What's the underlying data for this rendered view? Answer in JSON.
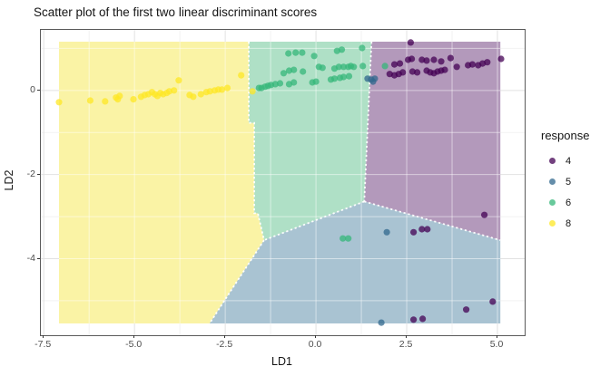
{
  "chart_data": {
    "type": "scatter",
    "title": "Scatter plot of the first two linear discriminant scores",
    "xlabel": "LD1",
    "ylabel": "LD2",
    "legend_title": "response",
    "legend_position": "right",
    "grid": true,
    "xlim": [
      -7.58,
      5.75
    ],
    "ylim": [
      -5.82,
      1.44
    ],
    "x_ticks": {
      "values": [
        -7.5,
        -5.0,
        -2.5,
        0.0,
        2.5,
        5.0
      ],
      "labels": [
        "-7.5",
        "-5.0",
        "-2.5",
        "0.0",
        "2.5",
        "5.0"
      ]
    },
    "y_ticks": {
      "values": [
        0,
        -2,
        -4
      ],
      "labels": [
        "0",
        "-2",
        "-4"
      ]
    },
    "x_minor": [
      -6.25,
      -3.75,
      -1.25,
      1.25,
      3.75
    ],
    "y_minor": [
      1,
      -1,
      -3,
      -5
    ],
    "point_opacity": 0.75,
    "region_extent": {
      "x": [
        -7.08,
        5.08
      ],
      "y": [
        -5.54,
        1.16
      ]
    },
    "regions": [
      {
        "class": "8",
        "fill": "#FAF3A5",
        "polygon": [
          [
            -7.08,
            1.16
          ],
          [
            -1.85,
            1.16
          ],
          [
            -1.85,
            -0.77
          ],
          [
            -1.7,
            -0.77
          ],
          [
            -1.7,
            -2.92
          ],
          [
            -1.6,
            -2.92
          ],
          [
            -1.43,
            -3.56
          ],
          [
            -2.38,
            -4.81
          ],
          [
            -2.93,
            -5.54
          ],
          [
            -7.08,
            -5.54
          ]
        ]
      },
      {
        "class": "6",
        "fill": "#AFE0C6",
        "polygon": [
          [
            -1.85,
            1.16
          ],
          [
            1.53,
            1.16
          ],
          [
            1.33,
            -2.64
          ],
          [
            -1.43,
            -3.56
          ],
          [
            -1.6,
            -2.92
          ],
          [
            -1.7,
            -2.92
          ],
          [
            -1.7,
            -0.77
          ],
          [
            -1.85,
            -0.77
          ]
        ]
      },
      {
        "class": "4",
        "fill": "#B399BB",
        "polygon": [
          [
            1.53,
            1.16
          ],
          [
            5.08,
            1.16
          ],
          [
            5.08,
            -3.56
          ],
          [
            1.33,
            -2.64
          ]
        ]
      },
      {
        "class": "5",
        "fill": "#A9C3D2",
        "polygon": [
          [
            1.33,
            -2.64
          ],
          [
            5.08,
            -3.56
          ],
          [
            5.08,
            -5.54
          ],
          [
            -2.93,
            -5.54
          ],
          [
            -2.38,
            -4.81
          ],
          [
            -1.43,
            -3.56
          ]
        ]
      }
    ],
    "boundaries": [
      [
        [
          -1.85,
          1.16
        ],
        [
          -1.85,
          -0.77
        ],
        [
          -1.7,
          -0.77
        ],
        [
          -1.7,
          -2.92
        ],
        [
          -1.6,
          -2.92
        ],
        [
          -1.43,
          -3.56
        ]
      ],
      [
        [
          1.53,
          1.16
        ],
        [
          1.33,
          -2.64
        ]
      ],
      [
        [
          1.33,
          -2.64
        ],
        [
          -1.43,
          -3.56
        ]
      ],
      [
        [
          -1.43,
          -3.56
        ],
        [
          -2.38,
          -4.81
        ],
        [
          -2.93,
          -5.54
        ]
      ],
      [
        [
          1.33,
          -2.64
        ],
        [
          5.08,
          -3.56
        ]
      ]
    ],
    "series": [
      {
        "name": "4",
        "color": "#440154",
        "points": [
          [
            2.61,
            1.14
          ],
          [
            2.16,
            0.62
          ],
          [
            2.31,
            0.64
          ],
          [
            2.54,
            0.73
          ],
          [
            2.64,
            0.75
          ],
          [
            2.92,
            0.73
          ],
          [
            3.05,
            0.71
          ],
          [
            3.25,
            0.73
          ],
          [
            3.45,
            0.69
          ],
          [
            3.71,
            0.77
          ],
          [
            3.88,
            0.56
          ],
          [
            4.19,
            0.6
          ],
          [
            4.31,
            0.62
          ],
          [
            4.47,
            0.6
          ],
          [
            4.59,
            0.64
          ],
          [
            4.72,
            0.67
          ],
          [
            5.1,
            0.75
          ],
          [
            2.03,
            0.39
          ],
          [
            2.16,
            0.36
          ],
          [
            2.28,
            0.39
          ],
          [
            2.39,
            0.43
          ],
          [
            2.66,
            0.45
          ],
          [
            2.79,
            0.43
          ],
          [
            3.05,
            0.47
          ],
          [
            3.15,
            0.43
          ],
          [
            3.25,
            0.41
          ],
          [
            3.35,
            0.45
          ],
          [
            3.45,
            0.47
          ],
          [
            3.55,
            0.49
          ],
          [
            4.64,
            -2.96
          ],
          [
            2.69,
            -3.37
          ],
          [
            2.92,
            -3.3
          ],
          [
            3.07,
            -3.3
          ],
          [
            4.87,
            -5.02
          ],
          [
            4.14,
            -5.21
          ],
          [
            2.69,
            -5.45
          ],
          [
            2.94,
            -5.43
          ]
        ]
      },
      {
        "name": "5",
        "color": "#31688E",
        "points": [
          [
            1.42,
            0.28
          ],
          [
            1.52,
            0.26
          ],
          [
            1.62,
            0.28
          ],
          [
            1.57,
            0.21
          ],
          [
            1.95,
            -3.37
          ],
          [
            1.8,
            -5.52
          ]
        ]
      },
      {
        "name": "6",
        "color": "#35B779",
        "points": [
          [
            -0.76,
            0.88
          ],
          [
            -0.56,
            0.9
          ],
          [
            -0.38,
            0.9
          ],
          [
            -0.05,
            0.82
          ],
          [
            0.58,
            0.94
          ],
          [
            0.71,
            0.97
          ],
          [
            1.27,
            1.01
          ],
          [
            -0.89,
            0.41
          ],
          [
            -0.74,
            0.47
          ],
          [
            -0.61,
            0.49
          ],
          [
            -0.36,
            0.45
          ],
          [
            0.08,
            0.56
          ],
          [
            0.18,
            0.54
          ],
          [
            0.51,
            0.52
          ],
          [
            0.63,
            0.56
          ],
          [
            0.76,
            0.56
          ],
          [
            0.89,
            0.56
          ],
          [
            0.96,
            0.58
          ],
          [
            1.04,
            0.56
          ],
          [
            1.29,
            0.58
          ],
          [
            -1.57,
            0.06
          ],
          [
            -1.5,
            0.06
          ],
          [
            -1.4,
            0.09
          ],
          [
            -1.32,
            0.11
          ],
          [
            -1.24,
            0.13
          ],
          [
            -1.12,
            0.15
          ],
          [
            -0.99,
            0.17
          ],
          [
            -0.74,
            0.15
          ],
          [
            -0.61,
            0.19
          ],
          [
            -0.1,
            0.19
          ],
          [
            0.0,
            0.21
          ],
          [
            0.41,
            0.26
          ],
          [
            0.51,
            0.28
          ],
          [
            0.66,
            0.3
          ],
          [
            0.76,
            0.32
          ],
          [
            0.91,
            0.34
          ],
          [
            1.9,
            0.58
          ],
          [
            0.74,
            -3.52
          ],
          [
            0.89,
            -3.52
          ]
        ]
      },
      {
        "name": "8",
        "color": "#FDE725",
        "points": [
          [
            -7.08,
            -0.28
          ],
          [
            -6.22,
            -0.24
          ],
          [
            -5.81,
            -0.26
          ],
          [
            -5.51,
            -0.17
          ],
          [
            -5.41,
            -0.13
          ],
          [
            -5.46,
            -0.21
          ],
          [
            -5.03,
            -0.21
          ],
          [
            -4.82,
            -0.15
          ],
          [
            -4.72,
            -0.11
          ],
          [
            -4.62,
            -0.09
          ],
          [
            -4.52,
            -0.04
          ],
          [
            -4.44,
            -0.09
          ],
          [
            -4.37,
            -0.13
          ],
          [
            -4.29,
            -0.06
          ],
          [
            -4.21,
            -0.09
          ],
          [
            -4.11,
            -0.06
          ],
          [
            -4.04,
            -0.02
          ],
          [
            -3.91,
            0.0
          ],
          [
            -3.78,
            0.24
          ],
          [
            -3.48,
            -0.11
          ],
          [
            -3.38,
            -0.15
          ],
          [
            -3.17,
            -0.09
          ],
          [
            -3.02,
            -0.04
          ],
          [
            -2.92,
            -0.02
          ],
          [
            -2.79,
            0.0
          ],
          [
            -2.69,
            0.02
          ],
          [
            -2.59,
            0.02
          ],
          [
            -2.44,
            0.06
          ],
          [
            -2.06,
            0.36
          ],
          [
            -1.75,
            -0.02
          ]
        ]
      }
    ]
  }
}
